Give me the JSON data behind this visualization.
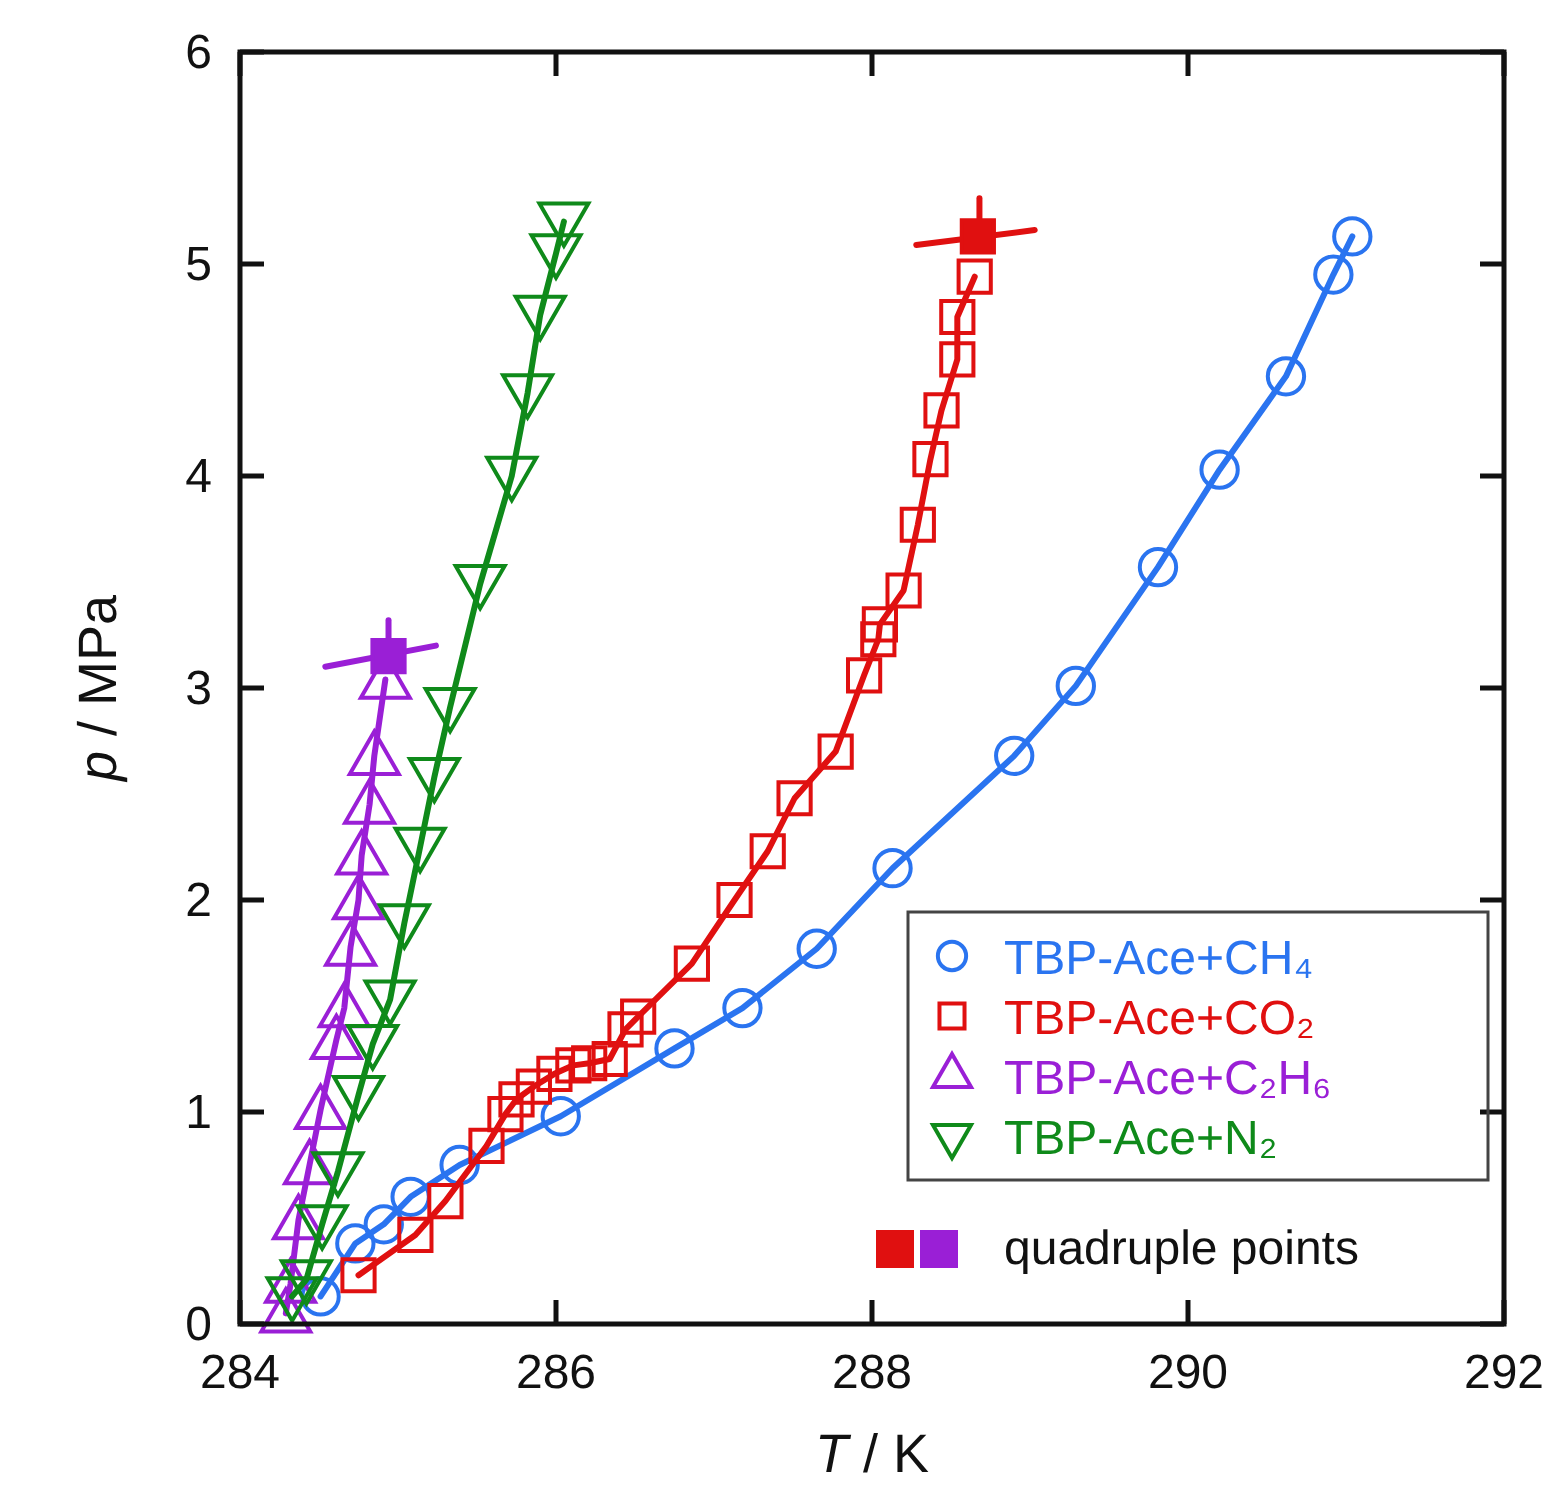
{
  "chart_data": {
    "type": "line",
    "xlabel": "T / K",
    "ylabel": "p / MPa",
    "xlim": [
      284,
      292
    ],
    "xticks": [
      284,
      286,
      288,
      290,
      292
    ],
    "ylim": [
      0,
      6
    ],
    "yticks": [
      0,
      1,
      2,
      3,
      4,
      5,
      6
    ],
    "grid": false,
    "legend": "bottom right",
    "series": [
      {
        "name": "TBP-Ace+CH₄",
        "color": "#2a74f0",
        "marker": "circle",
        "x": [
          284.51,
          284.73,
          284.91,
          285.08,
          285.39,
          286.03,
          286.75,
          287.18,
          287.65,
          288.13,
          288.9,
          289.29,
          289.81,
          290.2,
          290.62,
          290.92,
          291.04
        ],
        "values": [
          0.13,
          0.38,
          0.47,
          0.6,
          0.75,
          0.98,
          1.3,
          1.49,
          1.77,
          2.15,
          2.68,
          3.01,
          3.57,
          4.03,
          4.47,
          4.95,
          5.13
        ]
      },
      {
        "name": "TBP-Ace+CO₂",
        "color": "#e01010",
        "marker": "square",
        "x": [
          284.75,
          285.11,
          285.3,
          285.56,
          285.68,
          285.75,
          285.86,
          285.99,
          286.11,
          286.21,
          286.34,
          286.44,
          286.52,
          286.86,
          287.13,
          287.34,
          287.51,
          287.77,
          287.95,
          288.04,
          288.05,
          288.2,
          288.29,
          288.37,
          288.44,
          288.54,
          288.54,
          288.65
        ],
        "values": [
          0.23,
          0.42,
          0.58,
          0.84,
          0.99,
          1.06,
          1.12,
          1.18,
          1.22,
          1.23,
          1.25,
          1.39,
          1.45,
          1.7,
          2.0,
          2.23,
          2.48,
          2.7,
          3.06,
          3.23,
          3.3,
          3.46,
          3.77,
          4.08,
          4.31,
          4.55,
          4.75,
          4.94
        ]
      },
      {
        "name": "TBP-Ace+C₂H₆",
        "color": "#9a1fd6",
        "marker": "triangle",
        "x": [
          284.29,
          284.32,
          284.37,
          284.44,
          284.51,
          284.61,
          284.66,
          284.7,
          284.75,
          284.77,
          284.82,
          284.85,
          284.92
        ],
        "values": [
          0.05,
          0.19,
          0.49,
          0.75,
          1.01,
          1.34,
          1.49,
          1.78,
          2.0,
          2.21,
          2.45,
          2.68,
          3.04
        ]
      },
      {
        "name": "TBP-Ace+N₂",
        "color": "#0f8a1a",
        "marker": "triangle-down",
        "x": [
          284.33,
          284.42,
          284.52,
          284.62,
          284.75,
          284.84,
          284.95,
          285.04,
          285.14,
          285.23,
          285.33,
          285.52,
          285.72,
          285.82,
          285.9,
          286.0,
          286.05
        ],
        "values": [
          0.13,
          0.21,
          0.47,
          0.72,
          1.08,
          1.32,
          1.53,
          1.89,
          2.25,
          2.58,
          2.91,
          3.49,
          4.0,
          4.39,
          4.76,
          5.05,
          5.2
        ]
      },
      {
        "color": "#e01010",
        "marker": "none",
        "x": [
          288.28,
          289.03
        ],
        "values": [
          5.09,
          5.16
        ]
      },
      {
        "color": "#e01010",
        "marker": "none",
        "x": [
          288.68,
          288.68
        ],
        "values": [
          5.13,
          5.31
        ]
      },
      {
        "color": "#9a1fd6",
        "marker": "none",
        "x": [
          284.54,
          285.24
        ],
        "values": [
          3.1,
          3.2
        ]
      },
      {
        "color": "#9a1fd6",
        "marker": "none",
        "x": [
          284.94,
          284.94
        ],
        "values": [
          3.15,
          3.32
        ]
      },
      {
        "type": "scatter",
        "name": "quadruple points",
        "marker": "square",
        "colors": [
          "#e01010",
          "#9a1fd6"
        ],
        "x": [
          288.67,
          284.94
        ],
        "values": [
          5.13,
          3.15
        ]
      }
    ]
  }
}
